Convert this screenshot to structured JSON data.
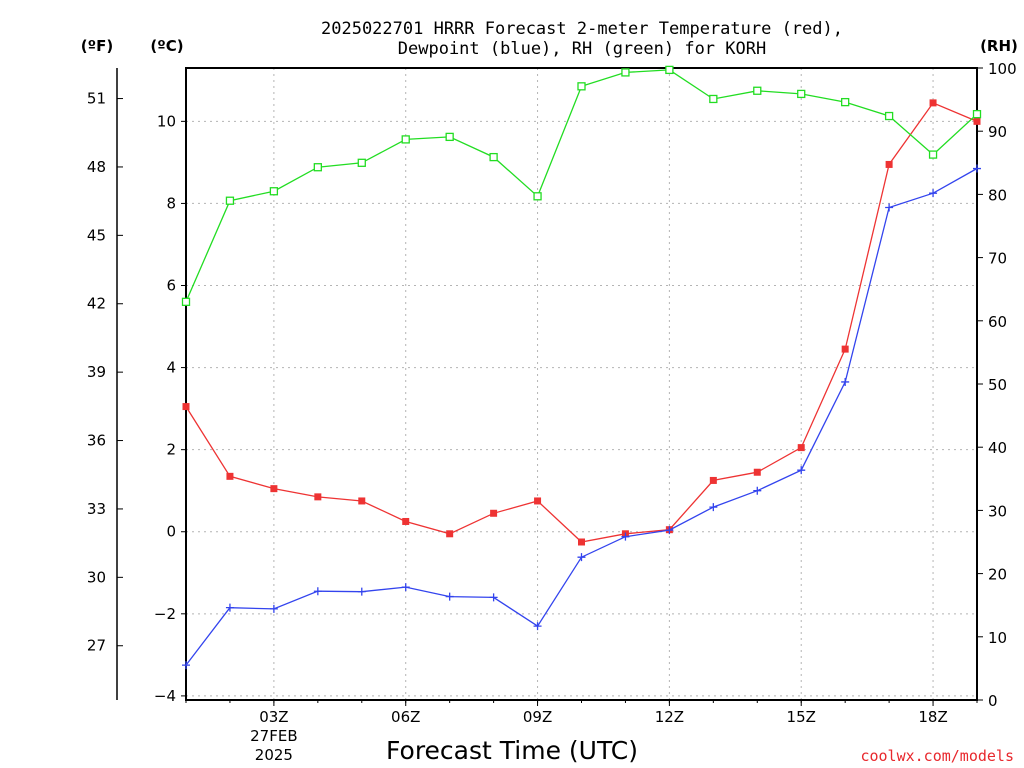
{
  "chart_data": {
    "type": "line",
    "title": "2025022701 HRRR Forecast 2-meter Temperature (red),",
    "subtitle": "Dewpoint (blue), RH (green) for KORH",
    "xlabel": "Forecast Time (UTC)",
    "credit": "coolwx.com/models",
    "units": {
      "fahrenheit": "(ºF)",
      "celsius": "(ºC)",
      "rh": "(RH)"
    },
    "x": [
      1,
      2,
      3,
      4,
      5,
      6,
      7,
      8,
      9,
      10,
      11,
      12,
      13,
      14,
      15,
      16,
      17,
      18,
      19
    ],
    "xlim": [
      1,
      19
    ],
    "x_ticks": [
      {
        "x": 3,
        "label": "03Z",
        "date": "27FEB",
        "year": "2025"
      },
      {
        "x": 6,
        "label": "06Z"
      },
      {
        "x": 9,
        "label": "09Z"
      },
      {
        "x": 12,
        "label": "12Z"
      },
      {
        "x": 15,
        "label": "15Z"
      },
      {
        "x": 18,
        "label": "18Z"
      }
    ],
    "y_celsius": {
      "lim": [
        -4.1,
        11.3
      ],
      "ticks": [
        -4,
        -2,
        0,
        2,
        4,
        6,
        8,
        10
      ],
      "labels": [
        "−4",
        "−2",
        "0",
        "2",
        "4",
        "6",
        "8",
        "10"
      ]
    },
    "y_fahrenheit": {
      "ticks": [
        27,
        30,
        33,
        36,
        39,
        42,
        45,
        48,
        51
      ],
      "labels": [
        "27",
        "30",
        "33",
        "36",
        "39",
        "42",
        "45",
        "48",
        "51"
      ]
    },
    "y_rh": {
      "lim": [
        0,
        100
      ],
      "ticks": [
        0,
        10,
        20,
        30,
        40,
        50,
        60,
        70,
        80,
        90,
        100
      ],
      "labels": [
        "0",
        "10",
        "20",
        "30",
        "40",
        "50",
        "60",
        "70",
        "80",
        "90",
        "100"
      ]
    },
    "grid": true,
    "series": [
      {
        "name": "Temperature (red)",
        "axis": "celsius",
        "color": "#ee3333",
        "marker": "filled-square",
        "values": [
          3.05,
          1.35,
          1.05,
          0.85,
          0.75,
          0.25,
          -0.05,
          0.45,
          0.75,
          -0.25,
          -0.05,
          0.05,
          1.25,
          1.45,
          2.05,
          4.45,
          8.95,
          10.45,
          10.0
        ]
      },
      {
        "name": "Dewpoint (blue)",
        "axis": "celsius",
        "color": "#3344ee",
        "marker": "plus",
        "values": [
          -3.25,
          -1.85,
          -1.88,
          -1.45,
          -1.46,
          -1.35,
          -1.58,
          -1.6,
          -2.3,
          -0.62,
          -0.12,
          0.04,
          0.6,
          1.0,
          1.5,
          3.65,
          7.9,
          8.25,
          8.85
        ]
      },
      {
        "name": "RH (green)",
        "axis": "rh",
        "color": "#22dd22",
        "marker": "open-square",
        "values": [
          63,
          79,
          80.5,
          84.3,
          85,
          88.7,
          89.1,
          85.9,
          79.7,
          97.1,
          99.3,
          99.7,
          95.1,
          96.4,
          95.9,
          94.6,
          92.4,
          86.3,
          92.7
        ]
      }
    ]
  }
}
